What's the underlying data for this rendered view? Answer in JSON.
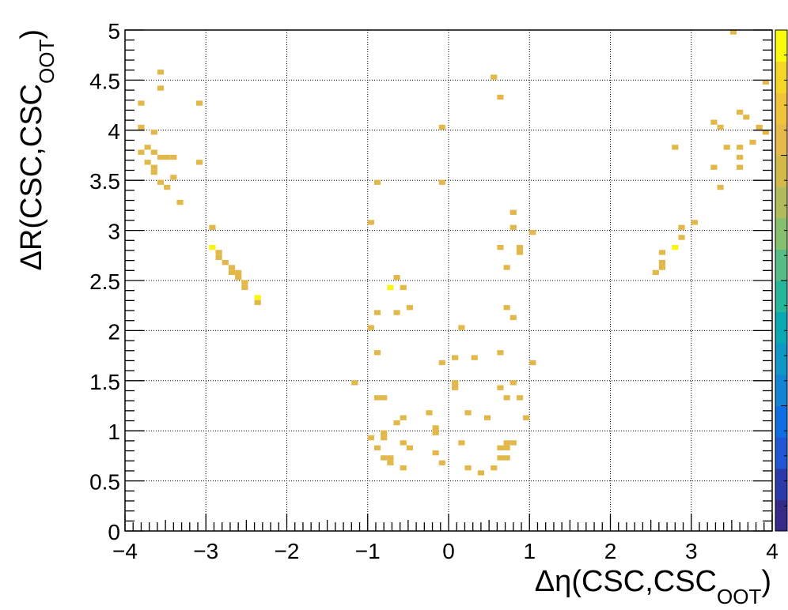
{
  "chart_data": {
    "type": "heatmap",
    "xlabel_parts": {
      "main": "Δη(CSC,CSC",
      "sub": "OOT",
      "close": ")"
    },
    "ylabel_parts": {
      "main": "ΔR(CSC,CSC",
      "sub": "OOT",
      "close": ")"
    },
    "xlim": [
      -4,
      4
    ],
    "ylim": [
      0,
      5
    ],
    "bin_width": 0.08,
    "bin_height": 0.05,
    "x_ticks": [
      -4,
      -3,
      -2,
      -1,
      0,
      1,
      2,
      3,
      4
    ],
    "x_tick_labels": [
      "−4",
      "−3",
      "−2",
      "−1",
      "0",
      "1",
      "2",
      "3",
      "4"
    ],
    "y_ticks": [
      0,
      0.5,
      1,
      1.5,
      2,
      2.5,
      3,
      3.5,
      4,
      4.5,
      5
    ],
    "y_tick_labels": [
      "0",
      "0.5",
      "1",
      "1.5",
      "2",
      "2.5",
      "3",
      "3.5",
      "4",
      "4.5",
      "5"
    ],
    "grid": true,
    "colorbar_colors": [
      "#352a87",
      "#2a3aa8",
      "#1f57d4",
      "#0f6fe0",
      "#1384d4",
      "#0f98c6",
      "#0aa8b2",
      "#27b69a",
      "#56bd84",
      "#86bf6d",
      "#b2bc5c",
      "#d3b94a",
      "#e5b94a",
      "#f0c33a",
      "#f5d628",
      "#f9fb0e"
    ],
    "cell_color": "#e2b84a",
    "highlight_color": "#f9f50e",
    "points": [
      [
        -3.8,
        4.27
      ],
      [
        -3.8,
        4.03
      ],
      [
        -3.8,
        3.78
      ],
      [
        -3.72,
        3.83
      ],
      [
        -3.72,
        3.68
      ],
      [
        -3.64,
        3.78
      ],
      [
        -3.64,
        3.98
      ],
      [
        -3.64,
        3.63
      ],
      [
        -3.64,
        3.58
      ],
      [
        -3.56,
        4.58
      ],
      [
        -3.56,
        4.42
      ],
      [
        -3.56,
        3.73
      ],
      [
        -3.56,
        3.48
      ],
      [
        -3.48,
        3.73
      ],
      [
        -3.48,
        3.43
      ],
      [
        -3.4,
        3.73
      ],
      [
        -3.4,
        3.53
      ],
      [
        -3.32,
        3.28
      ],
      [
        -3.08,
        4.27
      ],
      [
        -3.08,
        3.68
      ],
      [
        -2.92,
        3.03
      ],
      [
        -2.92,
        2.83
      ],
      [
        -2.84,
        2.78
      ],
      [
        -2.84,
        2.73
      ],
      [
        -2.76,
        2.68
      ],
      [
        -2.68,
        2.63
      ],
      [
        -2.68,
        2.58
      ],
      [
        -2.6,
        2.58
      ],
      [
        -2.6,
        2.53
      ],
      [
        -2.52,
        2.48
      ],
      [
        -2.52,
        2.43
      ],
      [
        -2.36,
        2.33
      ],
      [
        -2.36,
        2.28
      ],
      [
        -1.16,
        1.48
      ],
      [
        -0.96,
        3.08
      ],
      [
        -0.96,
        2.03
      ],
      [
        -0.96,
        0.93
      ],
      [
        -0.88,
        3.48
      ],
      [
        -0.88,
        2.18
      ],
      [
        -0.88,
        1.78
      ],
      [
        -0.88,
        1.33
      ],
      [
        -0.88,
        0.83
      ],
      [
        -0.8,
        1.33
      ],
      [
        -0.8,
        0.98
      ],
      [
        -0.8,
        0.93
      ],
      [
        -0.8,
        0.73
      ],
      [
        -0.72,
        2.43
      ],
      [
        -0.72,
        0.73
      ],
      [
        -0.72,
        0.68
      ],
      [
        -0.64,
        2.53
      ],
      [
        -0.64,
        2.18
      ],
      [
        -0.64,
        1.08
      ],
      [
        -0.56,
        2.43
      ],
      [
        -0.56,
        1.13
      ],
      [
        -0.56,
        0.88
      ],
      [
        -0.56,
        0.63
      ],
      [
        -0.48,
        2.23
      ],
      [
        -0.48,
        0.83
      ],
      [
        -0.24,
        1.18
      ],
      [
        -0.16,
        1.03
      ],
      [
        -0.16,
        0.98
      ],
      [
        -0.16,
        0.78
      ],
      [
        -0.08,
        4.03
      ],
      [
        -0.08,
        3.48
      ],
      [
        -0.08,
        1.68
      ],
      [
        -0.08,
        0.68
      ],
      [
        0.08,
        1.73
      ],
      [
        0.08,
        1.48
      ],
      [
        0.08,
        1.43
      ],
      [
        0.16,
        2.03
      ],
      [
        0.16,
        0.88
      ],
      [
        0.24,
        1.18
      ],
      [
        0.24,
        0.63
      ],
      [
        0.32,
        1.73
      ],
      [
        0.4,
        0.58
      ],
      [
        0.48,
        1.13
      ],
      [
        0.56,
        4.53
      ],
      [
        0.56,
        0.63
      ],
      [
        0.64,
        4.33
      ],
      [
        0.64,
        2.83
      ],
      [
        0.64,
        1.78
      ],
      [
        0.64,
        1.43
      ],
      [
        0.64,
        0.83
      ],
      [
        0.64,
        0.73
      ],
      [
        0.72,
        2.63
      ],
      [
        0.72,
        2.23
      ],
      [
        0.72,
        1.33
      ],
      [
        0.72,
        0.88
      ],
      [
        0.72,
        0.83
      ],
      [
        0.72,
        0.73
      ],
      [
        0.8,
        3.18
      ],
      [
        0.8,
        3.03
      ],
      [
        0.8,
        2.13
      ],
      [
        0.8,
        1.48
      ],
      [
        0.8,
        0.88
      ],
      [
        0.88,
        2.83
      ],
      [
        0.88,
        2.78
      ],
      [
        0.88,
        1.33
      ],
      [
        0.96,
        1.13
      ],
      [
        1.04,
        2.98
      ],
      [
        1.04,
        1.68
      ],
      [
        2.56,
        2.58
      ],
      [
        2.64,
        2.78
      ],
      [
        2.64,
        2.68
      ],
      [
        2.64,
        2.63
      ],
      [
        2.8,
        3.83
      ],
      [
        2.8,
        2.83
      ],
      [
        2.88,
        3.03
      ],
      [
        2.88,
        2.93
      ],
      [
        3.04,
        3.08
      ],
      [
        3.28,
        4.08
      ],
      [
        3.28,
        3.63
      ],
      [
        3.36,
        4.03
      ],
      [
        3.36,
        3.43
      ],
      [
        3.44,
        3.83
      ],
      [
        3.52,
        4.98
      ],
      [
        3.6,
        4.18
      ],
      [
        3.6,
        3.83
      ],
      [
        3.6,
        3.73
      ],
      [
        3.6,
        3.63
      ],
      [
        3.68,
        4.13
      ],
      [
        3.76,
        3.88
      ],
      [
        3.84,
        4.03
      ],
      [
        3.92,
        3.98
      ],
      [
        3.92,
        4.48
      ]
    ],
    "highlight_points": [
      [
        -2.92,
        2.83
      ],
      [
        -2.52,
        2.53
      ],
      [
        -2.36,
        2.33
      ],
      [
        -0.72,
        2.43
      ],
      [
        2.8,
        2.83
      ]
    ]
  }
}
